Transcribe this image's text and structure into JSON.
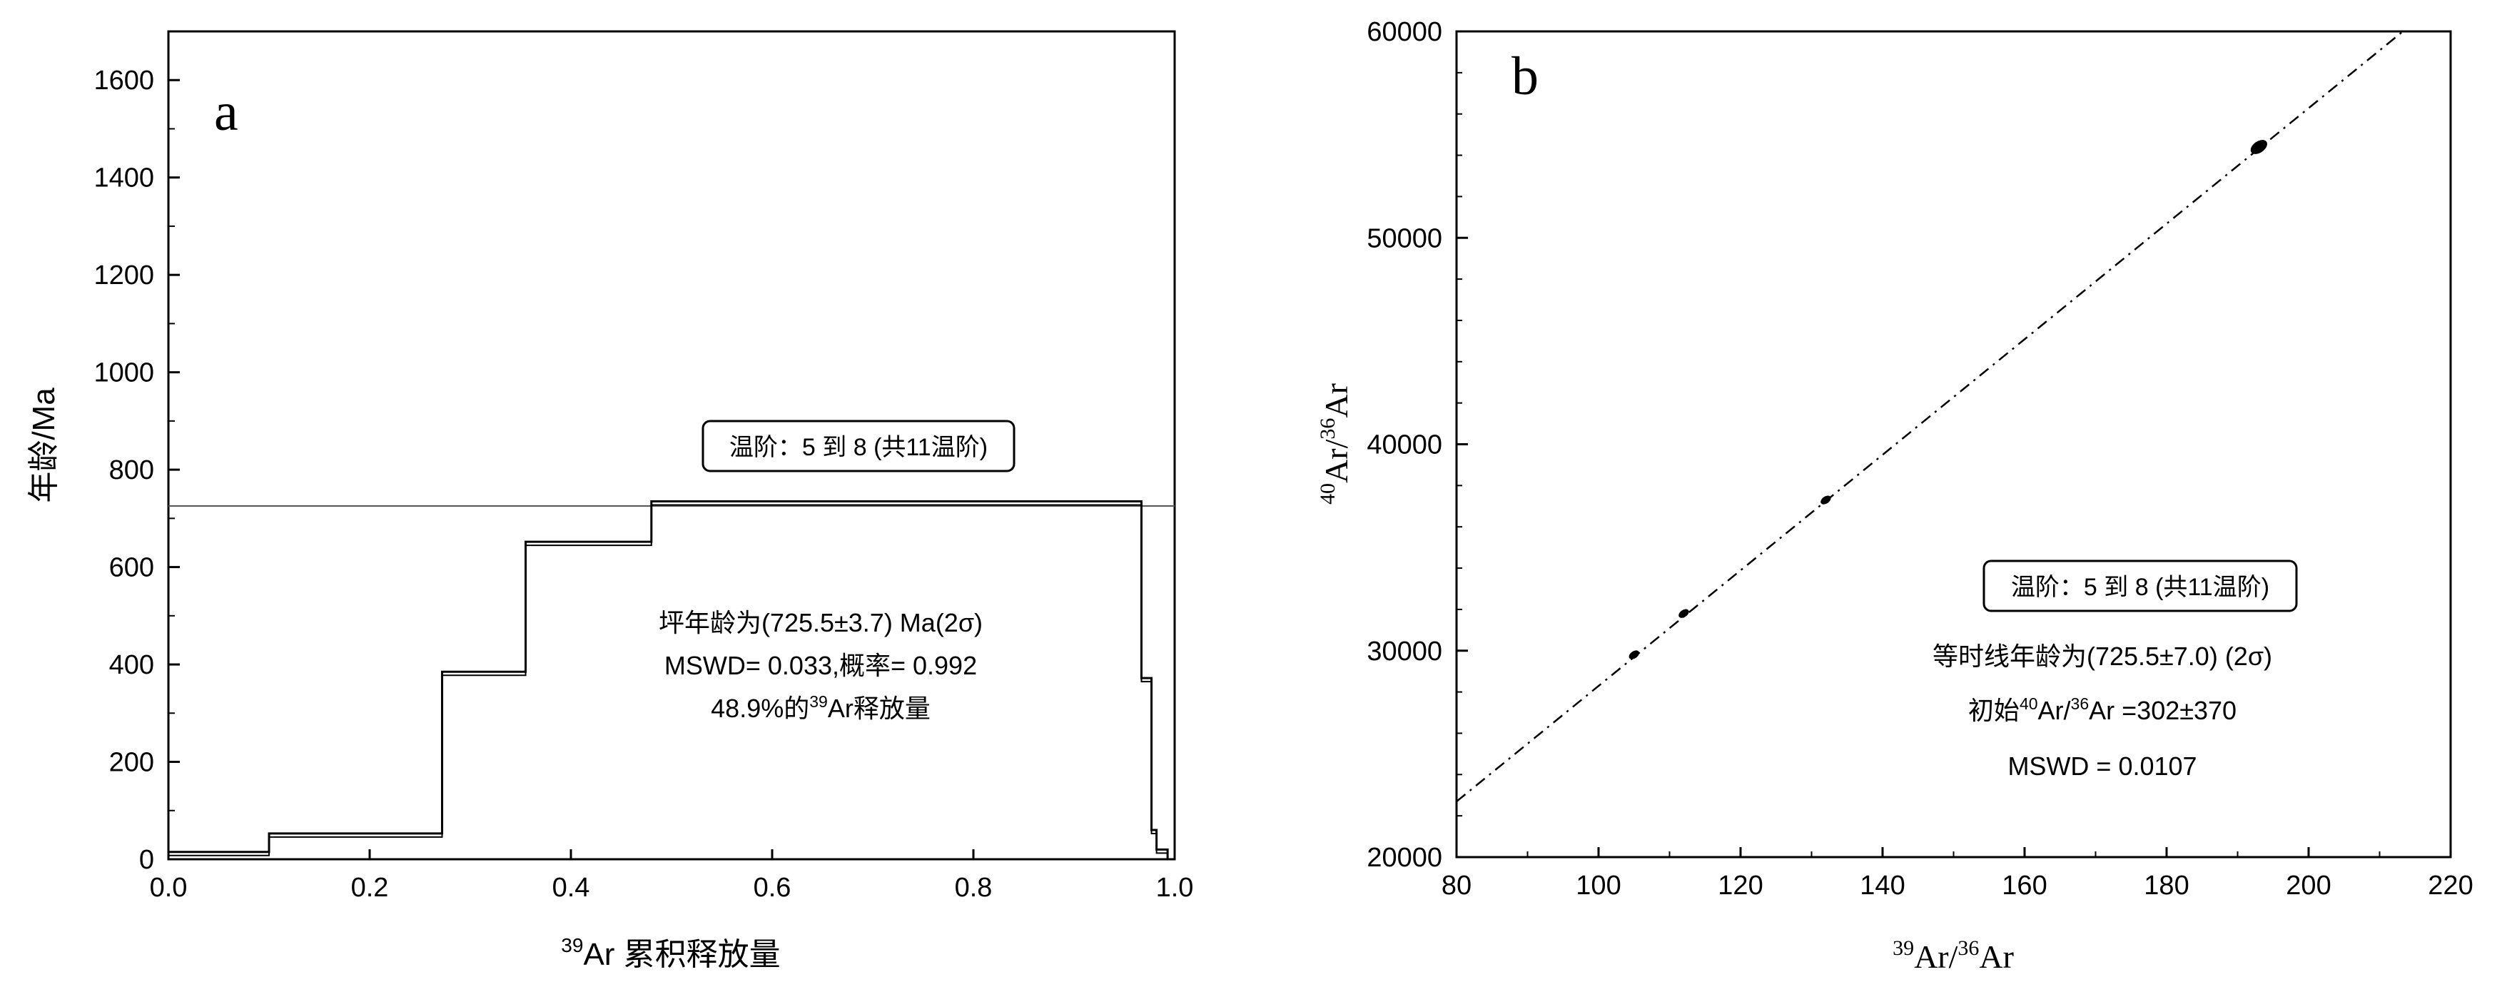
{
  "chart_data": [
    {
      "type": "line",
      "subtype": "age-spectrum",
      "panel_label": "a",
      "xlabel": {
        "sup": "39",
        "main": "Ar 累积释放量"
      },
      "ylabel": "年龄/Ma",
      "xlim": [
        0.0,
        1.0
      ],
      "ylim": [
        0,
        1700
      ],
      "xticks": [
        0.0,
        0.2,
        0.4,
        0.6,
        0.8,
        1.0
      ],
      "xtick_labels": [
        "0.0",
        "0.2",
        "0.4",
        "0.6",
        "0.8",
        "1.0"
      ],
      "yticks": [
        0,
        200,
        400,
        600,
        800,
        1000,
        1200,
        1400,
        1600
      ],
      "ytick_labels": [
        "0",
        "200",
        "400",
        "600",
        "800",
        "1000",
        "1200",
        "1400",
        "1600"
      ],
      "plateau_age": 725.5,
      "steps": [
        {
          "x_start": 0.0,
          "x_end": 0.1,
          "age": 15
        },
        {
          "x_start": 0.1,
          "x_end": 0.272,
          "age": 53
        },
        {
          "x_start": 0.272,
          "x_end": 0.355,
          "age": 385
        },
        {
          "x_start": 0.355,
          "x_end": 0.48,
          "age": 652
        },
        {
          "x_start": 0.48,
          "x_end": 0.967,
          "age": 735
        },
        {
          "x_start": 0.967,
          "x_end": 0.977,
          "age": 372
        },
        {
          "x_start": 0.977,
          "x_end": 0.982,
          "age": 60
        },
        {
          "x_start": 0.982,
          "x_end": 0.993,
          "age": 20
        }
      ],
      "step_box": "温阶：5 到 8 (共11温阶)",
      "annotations": {
        "line1": "坪年龄为(725.5±3.7) Ma(2σ)",
        "line2": "MSWD= 0.033,概率= 0.992",
        "line3_pre": "48.9%的",
        "line3_sup": "39",
        "line3_post": "Ar释放量"
      }
    },
    {
      "type": "scatter",
      "subtype": "isochron",
      "panel_label": "b",
      "xlabel": {
        "sup1": "39",
        "mid": "Ar/",
        "sup2": "36",
        "end": "Ar"
      },
      "ylabel": {
        "sup1": "40",
        "mid": "Ar/",
        "sup2": "36",
        "end": "Ar"
      },
      "xlim": [
        80,
        220
      ],
      "ylim": [
        20000,
        60000
      ],
      "xticks": [
        80,
        100,
        120,
        140,
        160,
        180,
        200,
        220
      ],
      "xtick_labels": [
        "80",
        "100",
        "120",
        "140",
        "160",
        "180",
        "200",
        "220"
      ],
      "yticks": [
        20000,
        30000,
        40000,
        50000,
        60000
      ],
      "ytick_labels": [
        "20000",
        "30000",
        "40000",
        "50000",
        "60000"
      ],
      "points": [
        {
          "x": 105,
          "y": 29800
        },
        {
          "x": 112,
          "y": 31800
        },
        {
          "x": 132,
          "y": 37300
        },
        {
          "x": 193,
          "y": 54400
        }
      ],
      "isochron_line": {
        "intercept": 302,
        "slope": 279.9,
        "style": "dash-dot"
      },
      "step_box": "温阶：5 到 8 (共11温阶)",
      "annotations": {
        "line1": "等时线年龄为(725.5±7.0) (2σ)",
        "line2_pre": "初始",
        "line2_sup1": "40",
        "line2_mid": "Ar/",
        "line2_sup2": "36",
        "line2_post": "Ar =302±370",
        "line3": "MSWD  = 0.0107"
      }
    }
  ]
}
